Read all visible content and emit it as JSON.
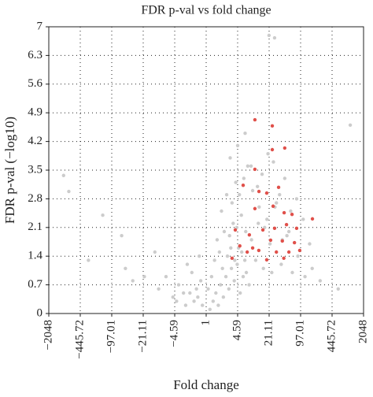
{
  "chart_data": {
    "type": "scatter",
    "title": "FDR p-val vs fold change",
    "x_label": "Fold change",
    "y_label": "FDR p-val (−log10)",
    "xscale": "signed-log2",
    "xlim": [
      -2048,
      2048
    ],
    "xticks": [
      {
        "value": -2048,
        "label": "−2048"
      },
      {
        "value": -445.72,
        "label": "−445.72"
      },
      {
        "value": -97.01,
        "label": "−97.01"
      },
      {
        "value": -21.11,
        "label": "−21.11"
      },
      {
        "value": -4.59,
        "label": "−4.59"
      },
      1,
      4.59,
      21.11,
      97.01,
      445.72,
      2048
    ],
    "ylim": [
      0,
      7
    ],
    "yticks": [
      0,
      0.7,
      1.4,
      2.1,
      2.8,
      3.5,
      4.2,
      4.9,
      5.6,
      6.3,
      7
    ],
    "grid": true,
    "series": [
      {
        "color": "#cccccc",
        "x": [
          1.2,
          1.4,
          1.6,
          1.8,
          2.0,
          2.3,
          2.6,
          3.0,
          3.4,
          3.9,
          4.5,
          5.2,
          6.0,
          7.0,
          8.0,
          1.3,
          1.5,
          1.9,
          2.2,
          2.8,
          3.3,
          4.0,
          4.8,
          5.6,
          6.5,
          1.1,
          1.7,
          2.4,
          3.1,
          3.7,
          4.4,
          5.5,
          6.8,
          9.0,
          11.0,
          13.0,
          16.0,
          19.0,
          24.0,
          30.0,
          38.0,
          50.0,
          65.0,
          85.0,
          120.0,
          170.0,
          250.0,
          2.1,
          2.7,
          3.5,
          4.2,
          5.0,
          6.2,
          7.5,
          9.5,
          12.0,
          15.0,
          20.0,
          26.0,
          35.0,
          45.0,
          60.0,
          80.0,
          110.0,
          150.0,
          3.2,
          4.6,
          6.6,
          8.8,
          12.5,
          17.0,
          22.0,
          28.0,
          40.0,
          55.0,
          21.0,
          27.5,
          1075.0,
          600.0,
          -1.2,
          -1.5,
          -1.8,
          -2.2,
          -2.7,
          -1.3,
          -1.6,
          -2.0,
          -3.0,
          -3.8,
          -5.0,
          -7.0,
          -10.0,
          -20.0,
          -50.0,
          -60.0,
          -150.0,
          -300.0,
          -776.0,
          -1000.0,
          -2.5,
          -4.2,
          -1.4,
          -12.0,
          -35.0
        ],
        "values": [
          0.1,
          0.3,
          0.5,
          0.2,
          0.7,
          0.4,
          0.9,
          0.6,
          1.1,
          0.8,
          1.2,
          0.5,
          0.9,
          1.0,
          0.7,
          0.9,
          1.3,
          1.5,
          1.1,
          1.4,
          1.6,
          1.3,
          1.6,
          1.5,
          1.3,
          0.6,
          1.8,
          2.0,
          1.9,
          2.2,
          2.1,
          2.4,
          2.0,
          1.8,
          1.3,
          2.6,
          1.1,
          2.3,
          1.0,
          2.7,
          1.2,
          1.9,
          1.0,
          1.4,
          0.9,
          1.1,
          0.8,
          2.5,
          2.9,
          2.7,
          3.2,
          2.9,
          3.3,
          3.6,
          3.0,
          3.1,
          3.4,
          3.9,
          3.7,
          2.9,
          3.3,
          2.5,
          2.8,
          2.3,
          1.7,
          3.8,
          4.1,
          4.4,
          3.6,
          2.2,
          2.1,
          1.7,
          2.6,
          1.8,
          2.0,
          6.79,
          6.73,
          4.6,
          0.6,
          0.2,
          0.4,
          0.3,
          0.5,
          0.2,
          0.8,
          0.6,
          1.0,
          0.5,
          0.7,
          0.4,
          0.9,
          0.6,
          0.9,
          1.1,
          1.9,
          2.4,
          1.3,
          2.98,
          3.37,
          1.2,
          0.3,
          1.4,
          1.5,
          0.8
        ]
      },
      {
        "color": "#e0504a",
        "x": [
          10.6,
          24.6,
          24.6,
          45.0,
          10.6,
          6.0,
          12.9,
          18.8,
          33.4,
          10.6,
          25.6,
          43.7,
          64.0,
          172.0,
          4.1,
          8.1,
          15.6,
          27.5,
          49.0,
          80.0,
          5.1,
          9.5,
          22.7,
          40.0,
          72.0,
          7.3,
          12.8,
          30.0,
          55.0,
          3.5,
          18.8,
          43.0,
          93.0
        ],
        "values": [
          4.73,
          4.58,
          4.0,
          4.04,
          3.52,
          3.13,
          2.98,
          2.94,
          3.08,
          2.56,
          2.62,
          2.46,
          2.42,
          2.31,
          2.04,
          1.92,
          2.04,
          2.08,
          2.17,
          2.08,
          1.65,
          1.6,
          1.79,
          1.77,
          1.73,
          1.5,
          1.54,
          1.5,
          1.5,
          1.35,
          1.31,
          1.35,
          1.54
        ]
      }
    ]
  }
}
